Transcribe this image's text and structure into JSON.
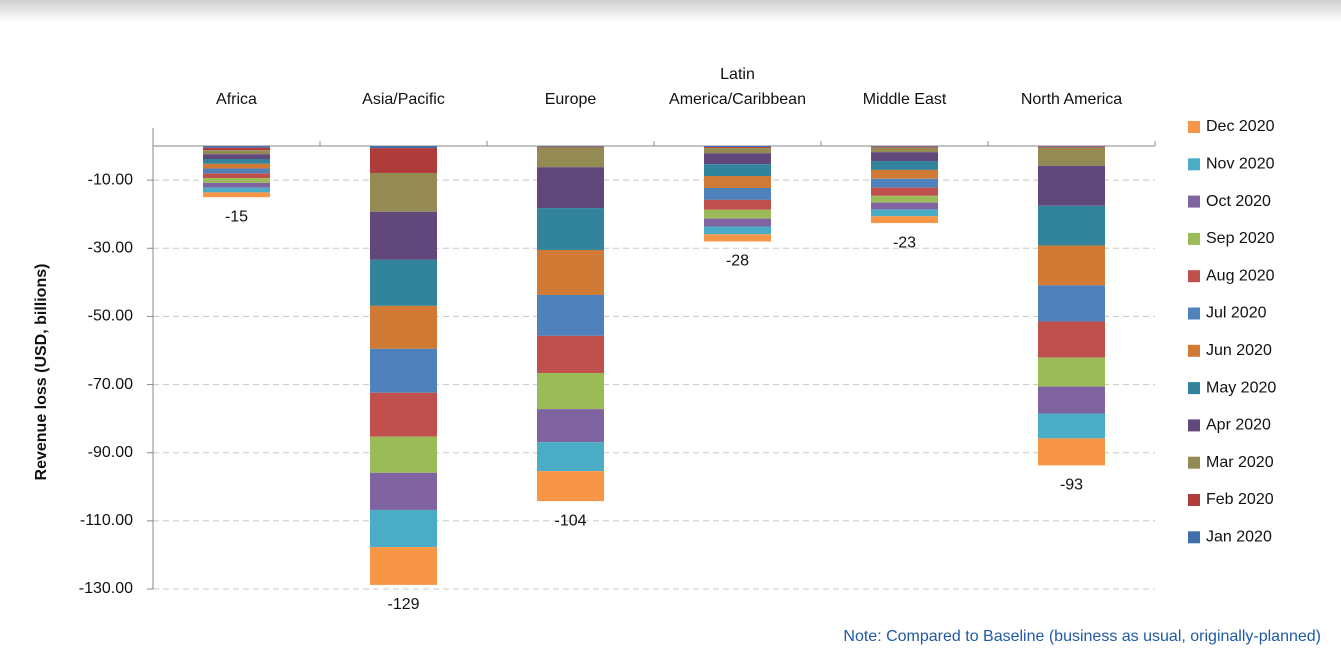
{
  "chart_data": {
    "type": "bar",
    "stacked": true,
    "y_label": "Revenue loss (USD, billions)",
    "note": "Note: Compared to Baseline (business as usual, originally-planned)",
    "categories": [
      "Africa",
      "Asia/Pacific",
      "Europe",
      "Latin America/Caribbean",
      "Middle East",
      "North America"
    ],
    "totals": [
      -15,
      -129,
      -104,
      -28,
      -23,
      -93
    ],
    "series": [
      {
        "name": "Jan 2020",
        "color": "#3f6faa",
        "values": [
          -0.5,
          -0.6,
          -0.2,
          -0.3,
          -0.2,
          -0.2
        ]
      },
      {
        "name": "Feb 2020",
        "color": "#b03b3b",
        "values": [
          -0.7,
          -7.3,
          -0.2,
          -0.3,
          -0.3,
          -0.3
        ]
      },
      {
        "name": "Mar 2020",
        "color": "#948a54",
        "values": [
          -1.2,
          -11.4,
          -5.8,
          -1.5,
          -1.3,
          -5.3
        ]
      },
      {
        "name": "Apr 2020",
        "color": "#60497a",
        "values": [
          -1.4,
          -14.1,
          -12.0,
          -3.2,
          -2.6,
          -11.7
        ]
      },
      {
        "name": "May 2020",
        "color": "#31849b",
        "values": [
          -1.4,
          -13.5,
          -12.3,
          -3.5,
          -2.6,
          -11.7
        ]
      },
      {
        "name": "Jun 2020",
        "color": "#d07a35",
        "values": [
          -1.4,
          -12.6,
          -13.2,
          -3.5,
          -2.6,
          -11.7
        ]
      },
      {
        "name": "Jul 2020",
        "color": "#4f81bd",
        "values": [
          -1.4,
          -12.9,
          -12.0,
          -3.5,
          -2.6,
          -10.6
        ]
      },
      {
        "name": "Aug 2020",
        "color": "#c0504d",
        "values": [
          -1.4,
          -12.9,
          -10.9,
          -2.9,
          -2.4,
          -10.6
        ]
      },
      {
        "name": "Sep 2020",
        "color": "#9bbb59",
        "values": [
          -1.4,
          -10.6,
          -10.6,
          -2.6,
          -2.0,
          -8.5
        ]
      },
      {
        "name": "Oct 2020",
        "color": "#8064a2",
        "values": [
          -1.4,
          -10.9,
          -9.7,
          -2.3,
          -2.0,
          -7.9
        ]
      },
      {
        "name": "Nov 2020",
        "color": "#4bacc6",
        "values": [
          -1.4,
          -10.9,
          -8.5,
          -2.3,
          -2.0,
          -7.3
        ]
      },
      {
        "name": "Dec 2020",
        "color": "#f79646",
        "values": [
          -1.4,
          -11.1,
          -8.8,
          -2.1,
          -2.0,
          -7.9
        ]
      }
    ],
    "ylim": [
      -130,
      5.3
    ],
    "yticks": [
      {
        "value": -10,
        "label": "-10.00"
      },
      {
        "value": -30,
        "label": "-30.00"
      },
      {
        "value": -50,
        "label": "-50.00"
      },
      {
        "value": -70,
        "label": "-70.00"
      },
      {
        "value": -90,
        "label": "-90.00"
      },
      {
        "value": -110,
        "label": "-110.00"
      },
      {
        "value": -130,
        "label": "-130.00"
      }
    ],
    "grid": true,
    "legend": "right"
  }
}
